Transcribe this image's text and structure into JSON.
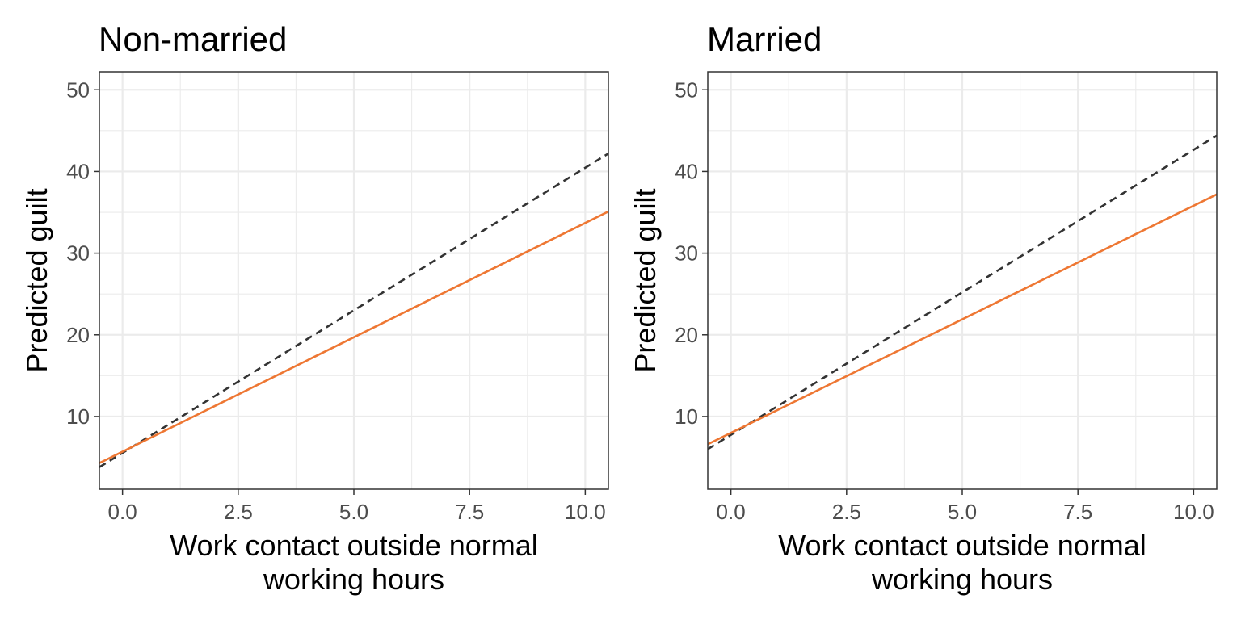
{
  "chart_data": [
    {
      "type": "line",
      "title": "Non-married",
      "xlabel": "Work contact outside normal\nworking hours",
      "ylabel": "Predicted guilt",
      "xlim": [
        -0.5,
        10.5
      ],
      "ylim": [
        1.1,
        52.2
      ],
      "x_ticks": [
        "0.0",
        "2.5",
        "5.0",
        "7.5",
        "10.0"
      ],
      "y_ticks": [
        "10",
        "20",
        "30",
        "40",
        "50"
      ],
      "grid": true,
      "series": [
        {
          "style": "dashed",
          "color": "#333333",
          "x": [
            -0.5,
            10.5
          ],
          "y": [
            3.8,
            42.2
          ]
        },
        {
          "style": "solid",
          "color": "#ee7733",
          "x": [
            -0.5,
            10.5
          ],
          "y": [
            4.3,
            35.1
          ]
        }
      ]
    },
    {
      "type": "line",
      "title": "Married",
      "xlabel": "Work contact outside normal\nworking hours",
      "ylabel": "Predicted guilt",
      "xlim": [
        -0.5,
        10.5
      ],
      "ylim": [
        1.1,
        52.2
      ],
      "x_ticks": [
        "0.0",
        "2.5",
        "5.0",
        "7.5",
        "10.0"
      ],
      "y_ticks": [
        "10",
        "20",
        "30",
        "40",
        "50"
      ],
      "grid": true,
      "series": [
        {
          "style": "dashed",
          "color": "#333333",
          "x": [
            -0.5,
            10.5
          ],
          "y": [
            6.0,
            44.4
          ]
        },
        {
          "style": "solid",
          "color": "#ee7733",
          "x": [
            -0.5,
            10.5
          ],
          "y": [
            6.6,
            37.2
          ]
        }
      ]
    }
  ]
}
